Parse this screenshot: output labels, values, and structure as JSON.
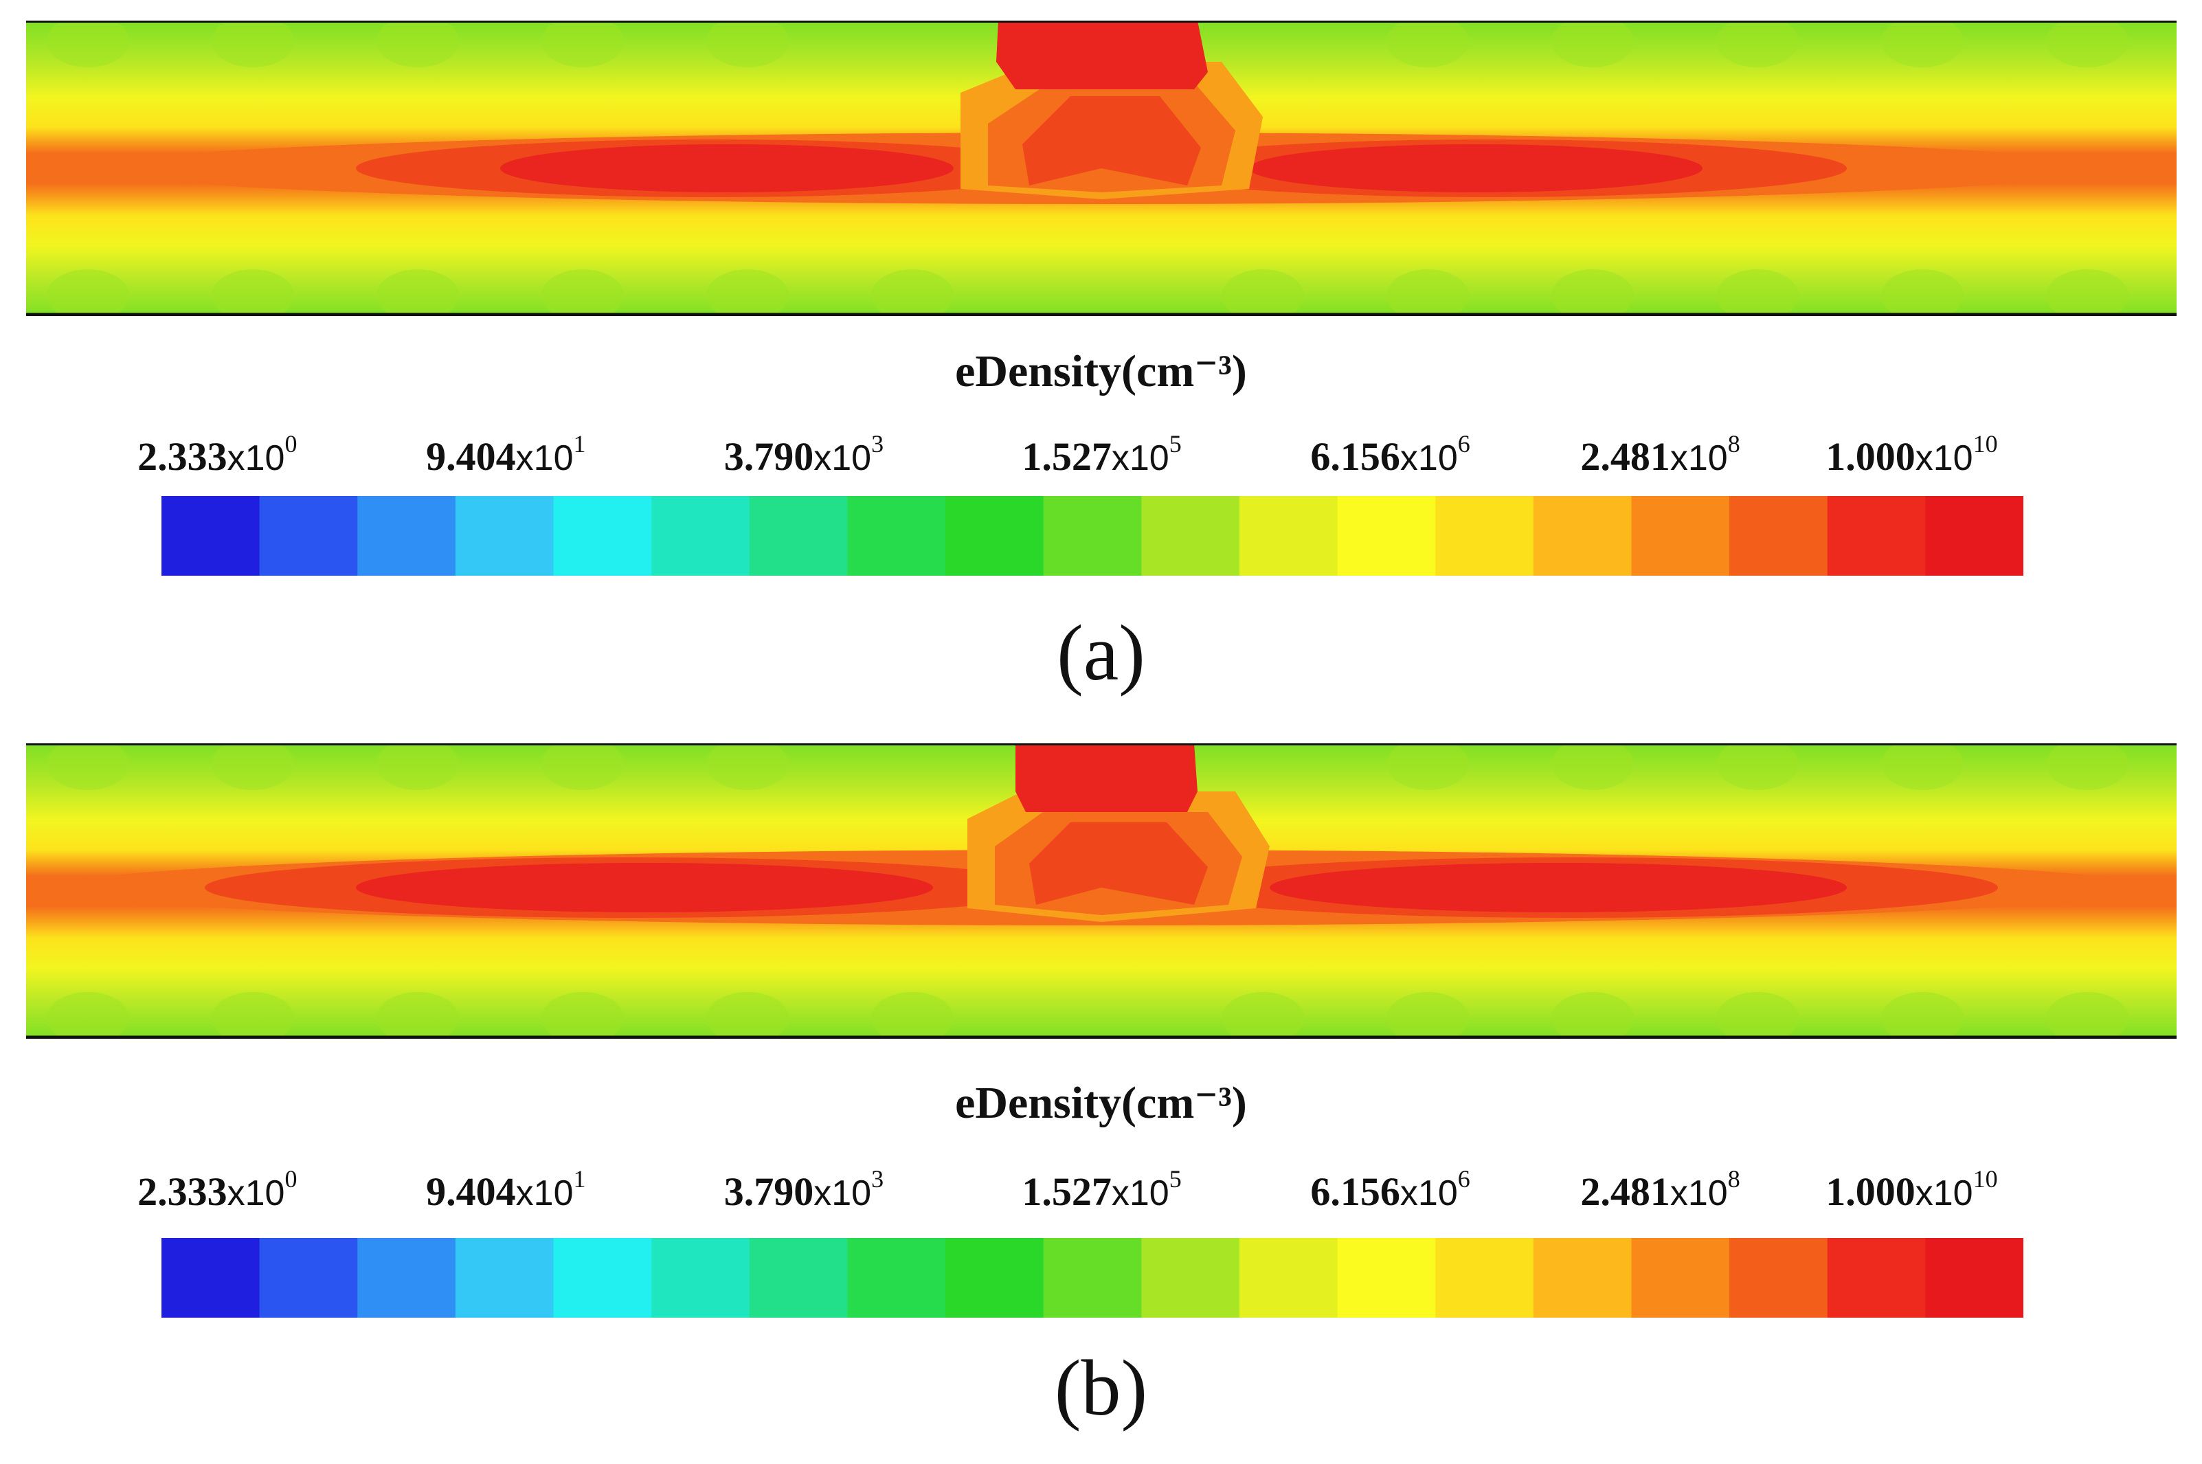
{
  "figures": [
    {
      "caption": "(a)",
      "colorbar_title": "eDensity(cm⁻³)",
      "tick_labels": [
        {
          "mantissa": "2.333",
          "x": "x10",
          "exp": "0"
        },
        {
          "mantissa": "9.404",
          "x": "x10",
          "exp": "1"
        },
        {
          "mantissa": "3.790",
          "x": "x10",
          "exp": "3"
        },
        {
          "mantissa": "1.527",
          "x": "x10",
          "exp": "5"
        },
        {
          "mantissa": "6.156",
          "x": "x10",
          "exp": "6"
        },
        {
          "mantissa": "2.481",
          "x": "x10",
          "exp": "8"
        },
        {
          "mantissa": "1.000",
          "x": "x10",
          "exp": "10"
        }
      ]
    },
    {
      "caption": "(b)",
      "colorbar_title": "eDensity(cm⁻³)",
      "tick_labels": [
        {
          "mantissa": "2.333",
          "x": "x10",
          "exp": "0"
        },
        {
          "mantissa": "9.404",
          "x": "x10",
          "exp": "1"
        },
        {
          "mantissa": "3.790",
          "x": "x10",
          "exp": "3"
        },
        {
          "mantissa": "1.527",
          "x": "x10",
          "exp": "5"
        },
        {
          "mantissa": "6.156",
          "x": "x10",
          "exp": "6"
        },
        {
          "mantissa": "2.481",
          "x": "x10",
          "exp": "8"
        },
        {
          "mantissa": "1.000",
          "x": "x10",
          "exp": "10"
        }
      ]
    }
  ],
  "colormap": [
    "#1f1fe0",
    "#2a55f0",
    "#2f8ff5",
    "#33c8f5",
    "#22f0f0",
    "#20e6c0",
    "#22e08a",
    "#27dc4c",
    "#2ad82a",
    "#66de27",
    "#a7e525",
    "#e5f020",
    "#fbfb1f",
    "#fde01c",
    "#fdb81b",
    "#f98a1a",
    "#f45e1b",
    "#ee2a1e",
    "#e8191c"
  ],
  "colors": {
    "background": "#ffffff",
    "frame": "#111111"
  }
}
